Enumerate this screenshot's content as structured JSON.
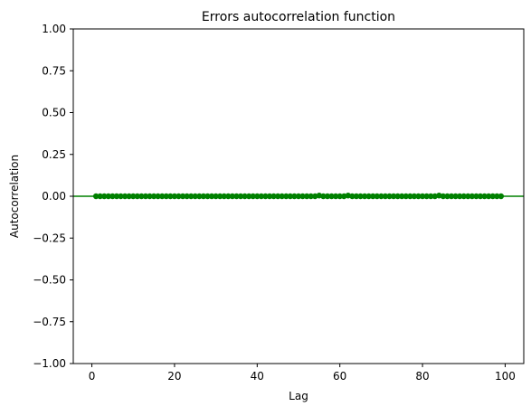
{
  "chart_data": {
    "type": "scatter",
    "title": "Errors autocorrelation function",
    "xlabel": "Lag",
    "ylabel": "Autocorrelation",
    "xlim": [
      -4.5,
      104.5
    ],
    "ylim": [
      -1.0,
      1.0
    ],
    "x_ticks": [
      0,
      20,
      40,
      60,
      80,
      100
    ],
    "x_tick_labels": [
      "0",
      "20",
      "40",
      "60",
      "80",
      "100"
    ],
    "y_ticks": [
      1.0,
      0.75,
      0.5,
      0.25,
      0.0,
      -0.25,
      -0.5,
      -0.75,
      -1.0
    ],
    "y_tick_labels": [
      "1.00",
      "0.75",
      "0.50",
      "0.25",
      "0.00",
      "−0.25",
      "−0.50",
      "−0.75",
      "−1.00"
    ],
    "reference_line": {
      "y": 0.0,
      "color": "#008000"
    },
    "marker_color": "#008000",
    "grid": false,
    "series": [
      {
        "x": [
          1,
          2,
          3,
          4,
          5,
          6,
          7,
          8,
          9,
          10,
          11,
          12,
          13,
          14,
          15,
          16,
          17,
          18,
          19,
          20,
          21,
          22,
          23,
          24,
          25,
          26,
          27,
          28,
          29,
          30,
          31,
          32,
          33,
          34,
          35,
          36,
          37,
          38,
          39,
          40,
          41,
          42,
          43,
          44,
          45,
          46,
          47,
          48,
          49,
          50,
          51,
          52,
          53,
          54,
          55,
          56,
          57,
          58,
          59,
          60,
          61,
          62,
          63,
          64,
          65,
          66,
          67,
          68,
          69,
          70,
          71,
          72,
          73,
          74,
          75,
          76,
          77,
          78,
          79,
          80,
          81,
          82,
          83,
          84,
          85,
          86,
          87,
          88,
          89,
          90,
          91,
          92,
          93,
          94,
          95,
          96,
          97,
          98,
          99
        ],
        "y": [
          0.0,
          0.0,
          0.0,
          0.0,
          0.0,
          0.0,
          0.0,
          0.0,
          0.0,
          0.0,
          0.0,
          0.0,
          0.0,
          0.0,
          0.0,
          0.0,
          0.0,
          0.0,
          0.0,
          0.0,
          0.0,
          0.0,
          0.0,
          0.0,
          0.0,
          0.0,
          0.0,
          0.0,
          0.0,
          0.0,
          0.0,
          0.0,
          0.0,
          0.0,
          0.0,
          0.0,
          0.0,
          0.0,
          0.0,
          0.0,
          0.0,
          0.0,
          0.0,
          0.0,
          0.0,
          0.0,
          0.0,
          0.0,
          0.0,
          0.0,
          0.0,
          0.0,
          0.0,
          0.0,
          0.004,
          0.0,
          0.0,
          0.0,
          0.0,
          0.0,
          0.0,
          0.004,
          0.0,
          0.0,
          0.0,
          0.0,
          0.0,
          0.0,
          0.0,
          0.0,
          0.0,
          0.0,
          0.0,
          0.0,
          0.0,
          0.0,
          0.0,
          0.0,
          0.0,
          0.0,
          0.0,
          0.0,
          0.0,
          0.004,
          0.0,
          0.0,
          0.0,
          0.0,
          0.0,
          0.0,
          0.0,
          0.0,
          0.0,
          0.0,
          0.0,
          0.0,
          0.0,
          0.0,
          0.0
        ]
      }
    ]
  }
}
